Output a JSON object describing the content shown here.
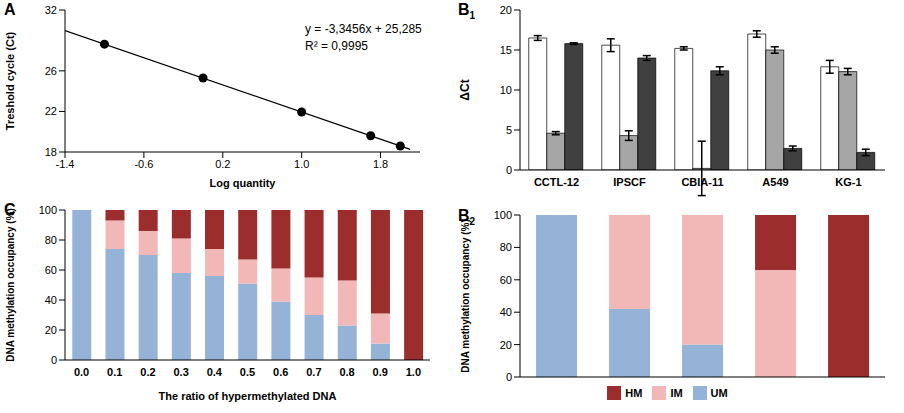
{
  "chart_data": [
    {
      "type": "scatter",
      "title": "A",
      "x_label": "Log quantity",
      "y_label": "Treshold cycle (Ct)",
      "annotations": [
        "y = -3,3456x + 25,285",
        "R² = 0,9995"
      ],
      "series": [
        {
          "type": "scatter",
          "color": "#000000",
          "marker": "circle",
          "x": [
            -1,
            0,
            1,
            1.7,
            2
          ],
          "values": [
            28.63,
            25.29,
            21.94,
            19.6,
            18.59
          ]
        },
        {
          "type": "line",
          "color": "#000000",
          "line_style": "solid",
          "x": [
            -1.4,
            2.1
          ],
          "values": [
            29.97,
            18.26
          ]
        }
      ],
      "xlim": [
        -1.4,
        2.2
      ],
      "xticks": [
        -1.4,
        -0.6,
        0.2,
        {
          "value": 1,
          "label": "1.0"
        },
        1.8
      ],
      "ylim": [
        18,
        32
      ],
      "yticks": [
        18,
        22,
        26,
        32
      ]
    },
    {
      "type": "bar",
      "title": "B1",
      "y_label": "ΔCt",
      "categories": [
        "CCTL-12",
        "IPSCF",
        "CBIA-11",
        "A549",
        "KG-1"
      ],
      "series": [
        {
          "color": "#ffffff",
          "values": [
            16.5,
            15.6,
            15.2,
            17.0,
            12.9
          ],
          "errors": [
            0.3,
            0.8,
            0.2,
            0.4,
            0.8
          ]
        },
        {
          "color": "#a6a6a6",
          "values": [
            4.6,
            4.3,
            0.2,
            15.0,
            12.3
          ],
          "errors": [
            0.2,
            0.6,
            3.4,
            0.4,
            0.4
          ]
        },
        {
          "color": "#404040",
          "values": [
            15.8,
            14.0,
            12.4,
            2.7,
            2.2
          ],
          "errors": [
            0.1,
            0.3,
            0.5,
            0.3,
            0.4
          ]
        }
      ],
      "ylim": [
        0,
        20
      ],
      "yticks": [
        0,
        5,
        10,
        15,
        20
      ]
    },
    {
      "type": "bar",
      "title": "B2",
      "stacked": true,
      "y_label": "DNA methylation occupancy (%)",
      "categories": [
        null,
        null,
        null,
        null,
        null
      ],
      "series": [
        {
          "name": "UM",
          "color": "#95b3d7",
          "values": [
            100,
            42,
            20,
            0,
            0
          ]
        },
        {
          "name": "IM",
          "color": "#f2b8b8",
          "values": [
            0,
            58,
            80,
            66,
            0
          ]
        },
        {
          "name": "HM",
          "color": "#9b2d2d",
          "values": [
            0,
            0,
            0,
            34,
            100
          ]
        }
      ],
      "ylim": [
        0,
        100
      ],
      "yticks": [
        0,
        20,
        40,
        60,
        80,
        100
      ],
      "legend": "bottom"
    },
    {
      "type": "bar",
      "title": "C",
      "stacked": true,
      "x_label": "The ratio of hypermethylated DNA",
      "y_label": "DNA methylation occupancy (%)",
      "categories": [
        "0.0",
        "0.1",
        "0.2",
        "0.3",
        "0.4",
        "0.5",
        "0.6",
        "0.7",
        "0.8",
        "0.9",
        "1.0"
      ],
      "series": [
        {
          "color": "#95b3d7",
          "values": [
            100,
            74,
            70,
            58,
            56,
            51,
            39,
            30,
            23,
            11,
            0
          ]
        },
        {
          "color": "#f2b8b8",
          "values": [
            0,
            19,
            16,
            23,
            18,
            16,
            22,
            25,
            30,
            20,
            0
          ]
        },
        {
          "color": "#9b2d2d",
          "values": [
            0,
            7,
            14,
            19,
            26,
            33,
            39,
            45,
            47,
            69,
            100
          ]
        }
      ],
      "ylim": [
        0,
        100
      ],
      "yticks": [
        0,
        20,
        40,
        60,
        80,
        100
      ]
    }
  ]
}
